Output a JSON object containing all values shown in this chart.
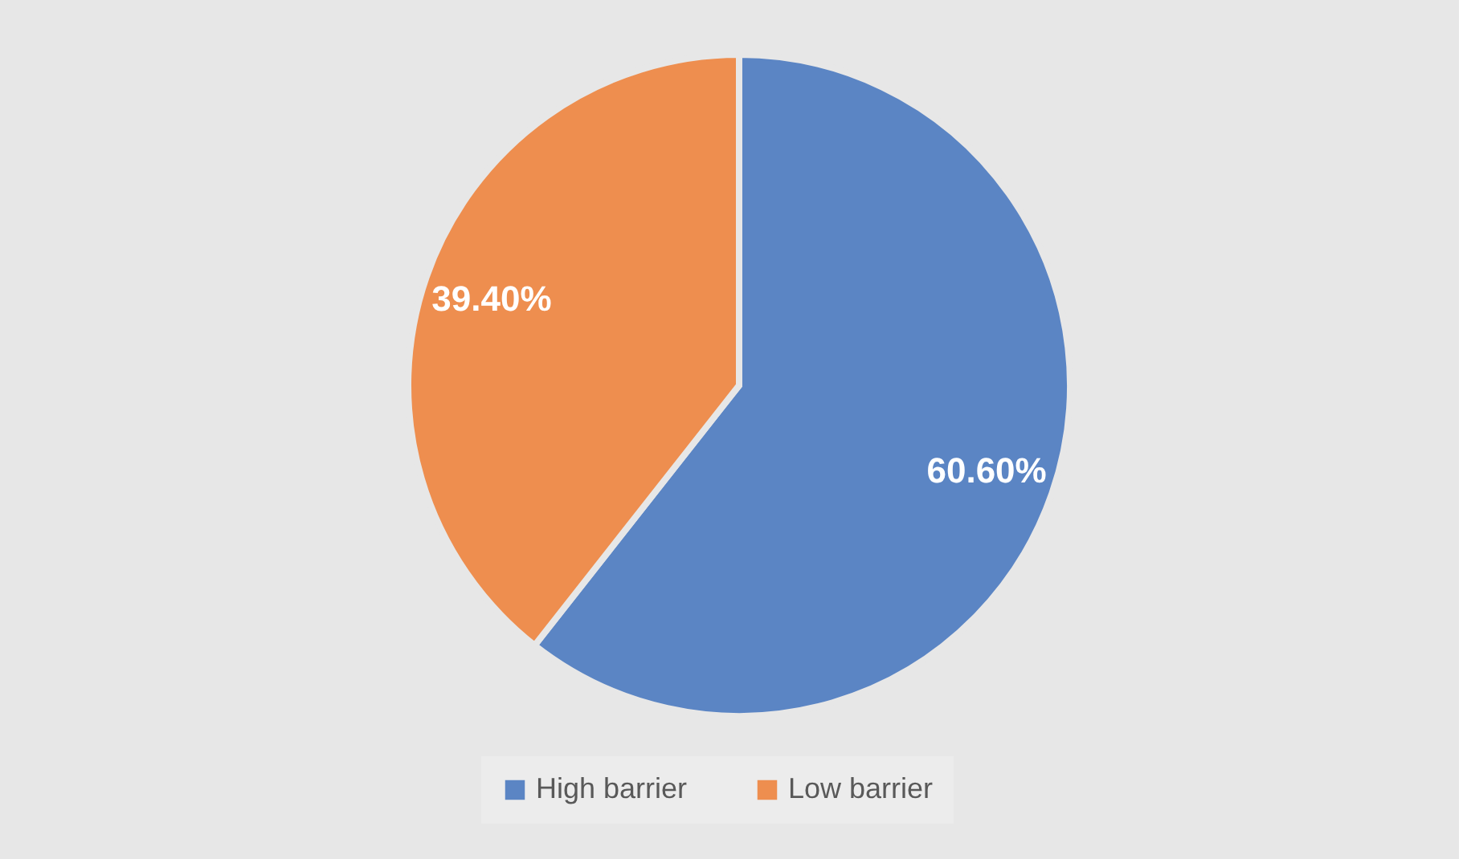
{
  "chart_data": {
    "type": "pie",
    "categories": [
      "High barrier",
      "Low barrier"
    ],
    "values": [
      60.6,
      39.4
    ],
    "colors": [
      "#5b85c4",
      "#ee8e4f"
    ],
    "value_labels": [
      "60.60%",
      "39.40%"
    ],
    "legend": "bottom"
  }
}
